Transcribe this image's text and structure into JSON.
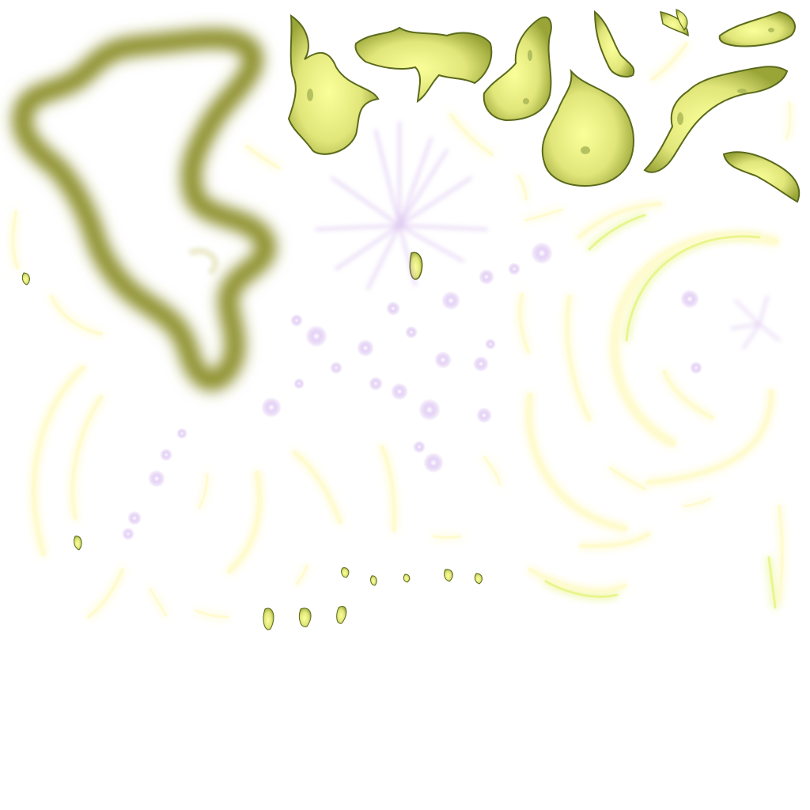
{
  "sheet": {
    "background": "#ffffff",
    "palette": {
      "aura_outline": "#8c8f2c",
      "flame_fill": "#e7ec86",
      "flame_edge": "#5a6a1c",
      "slash_core": "#fffbd0",
      "slash_glow": "#8cf35a",
      "spark_purple": "#c9a6e8",
      "spark_core": "#ffffff"
    },
    "sprites": [
      {
        "name": "aura-outline-sprite",
        "kind": "blurred-outline"
      },
      {
        "name": "flame-sprite",
        "kind": "flame",
        "count": 11
      },
      {
        "name": "starburst-sprite",
        "kind": "purple-burst"
      },
      {
        "name": "sparkle-sprite",
        "kind": "purple-sparkle",
        "count": 28
      },
      {
        "name": "slash-arc-sprite",
        "kind": "green-glow-crescent",
        "count": 28
      },
      {
        "name": "ember-sprite",
        "kind": "small-ember",
        "count": 10
      }
    ]
  }
}
